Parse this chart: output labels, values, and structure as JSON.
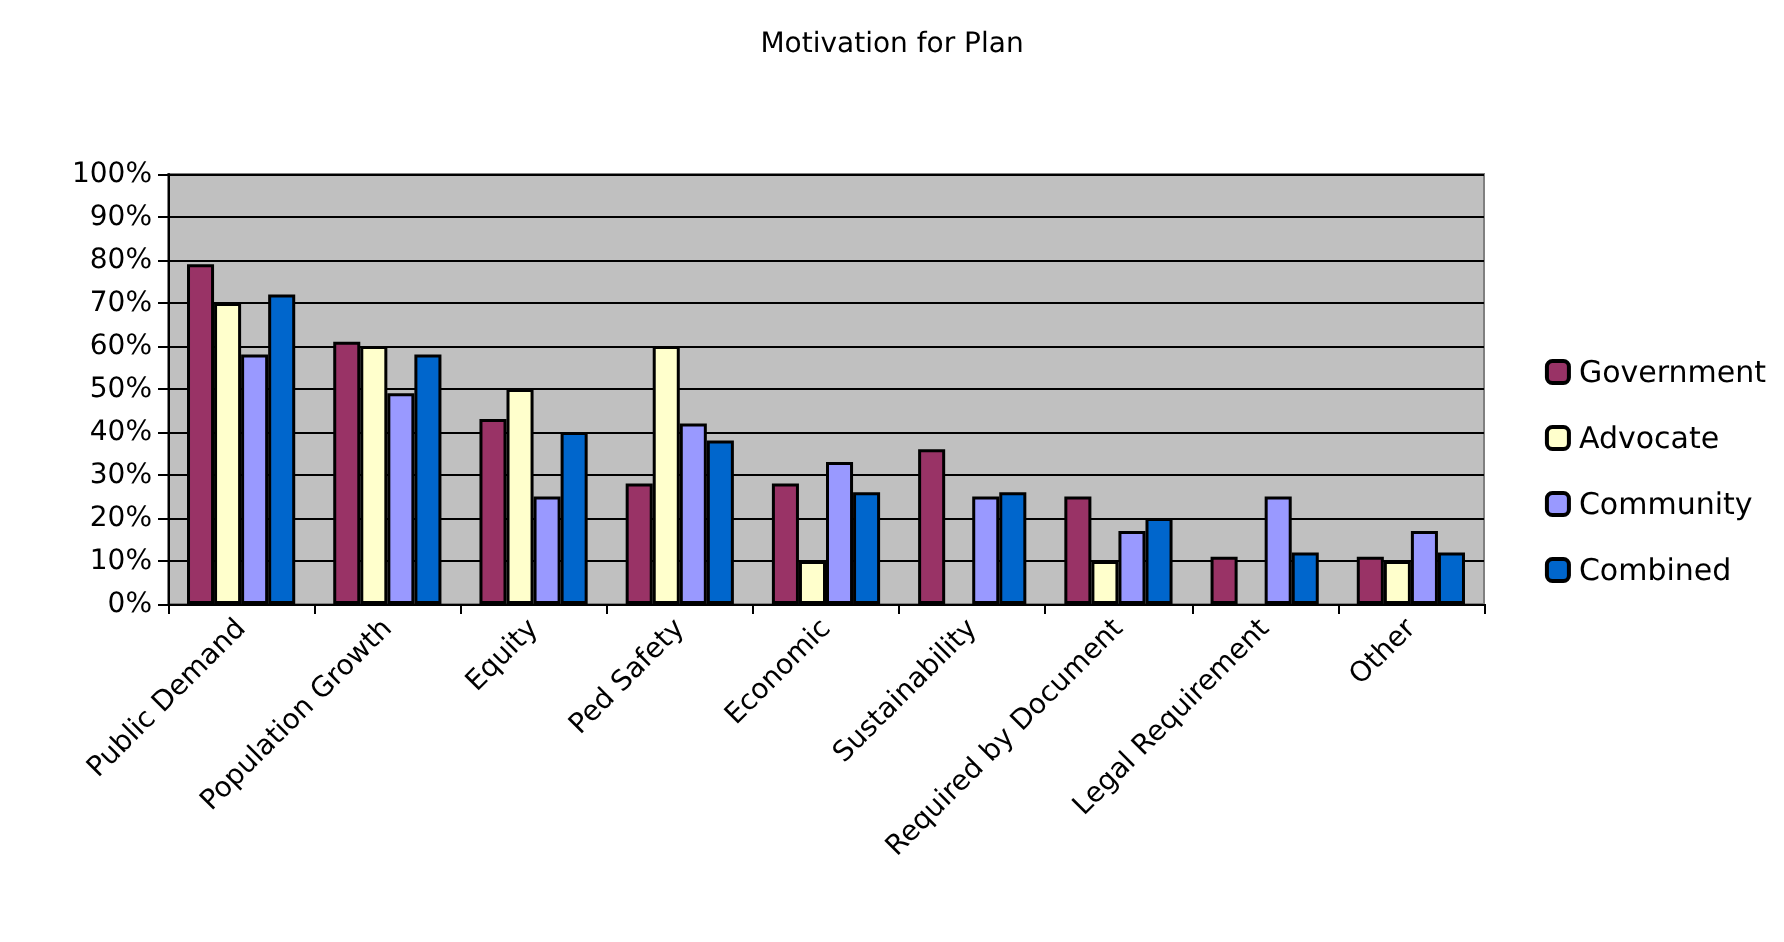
{
  "chart_data": {
    "type": "bar",
    "title": "Motivation for Plan",
    "categories": [
      "Public Demand",
      "Population Growth",
      "Equity",
      "Ped Safety",
      "Economic",
      "Sustainability",
      "Required by Document",
      "Legal Requirement",
      "Other"
    ],
    "series": [
      {
        "name": "Government",
        "color": "#993366",
        "values": [
          79,
          61,
          43,
          28,
          28,
          36,
          25,
          11,
          11
        ]
      },
      {
        "name": "Advocate",
        "color": "#ffffcc",
        "values": [
          70,
          60,
          50,
          60,
          10,
          null,
          10,
          null,
          10
        ]
      },
      {
        "name": "Community",
        "color": "#9999ff",
        "values": [
          58,
          49,
          25,
          42,
          33,
          25,
          17,
          25,
          17
        ]
      },
      {
        "name": "Combined",
        "color": "#0066cc",
        "values": [
          72,
          58,
          40,
          38,
          26,
          26,
          20,
          12,
          12
        ]
      }
    ],
    "ylim": [
      0,
      100
    ],
    "yticks": [
      {
        "value": 0,
        "label": "0%"
      },
      {
        "value": 10,
        "label": "10%"
      },
      {
        "value": 20,
        "label": "20%"
      },
      {
        "value": 30,
        "label": "30%"
      },
      {
        "value": 40,
        "label": "40%"
      },
      {
        "value": 50,
        "label": "50%"
      },
      {
        "value": 60,
        "label": "60%"
      },
      {
        "value": 70,
        "label": "70%"
      },
      {
        "value": 80,
        "label": "80%"
      },
      {
        "value": 90,
        "label": "90%"
      },
      {
        "value": 100,
        "label": "100%"
      }
    ],
    "grid": "y",
    "legend": "right"
  }
}
